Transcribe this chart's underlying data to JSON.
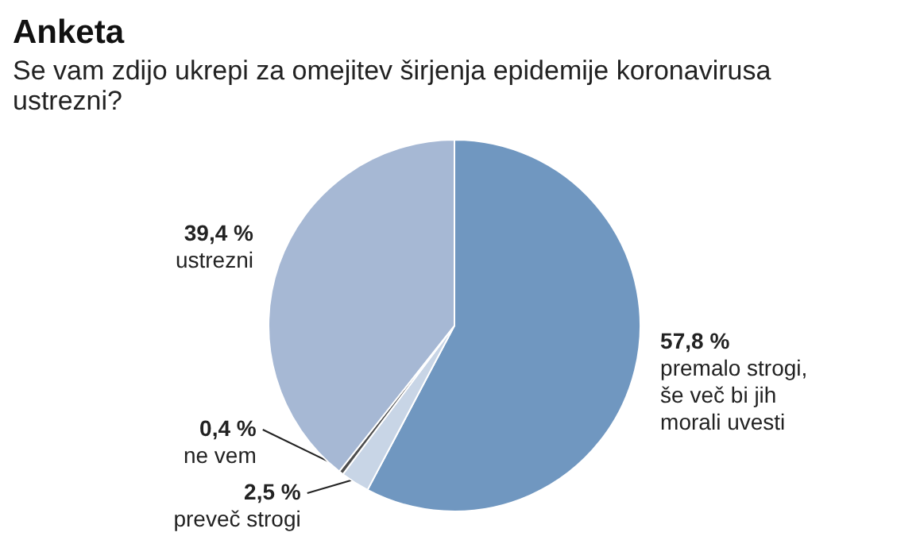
{
  "chart_data": {
    "type": "pie",
    "title": "Anketa",
    "subtitle": "Se vam zdijo ukrepi za omejitev širjenja epidemije koronavirusa ustrezni?",
    "categories": [
      "premalo strogi, še več bi jih morali uvesti",
      "preveč strogi",
      "ne vem",
      "ustrezni"
    ],
    "values": [
      57.8,
      2.5,
      0.4,
      39.4
    ],
    "value_labels": [
      "57,8 %",
      "2,5 %",
      "0,4 %",
      "39,4 %"
    ],
    "colors": [
      "#7097c0",
      "#c8d5e6",
      "#4d4d4d",
      "#a6b8d4"
    ],
    "legend": false
  }
}
